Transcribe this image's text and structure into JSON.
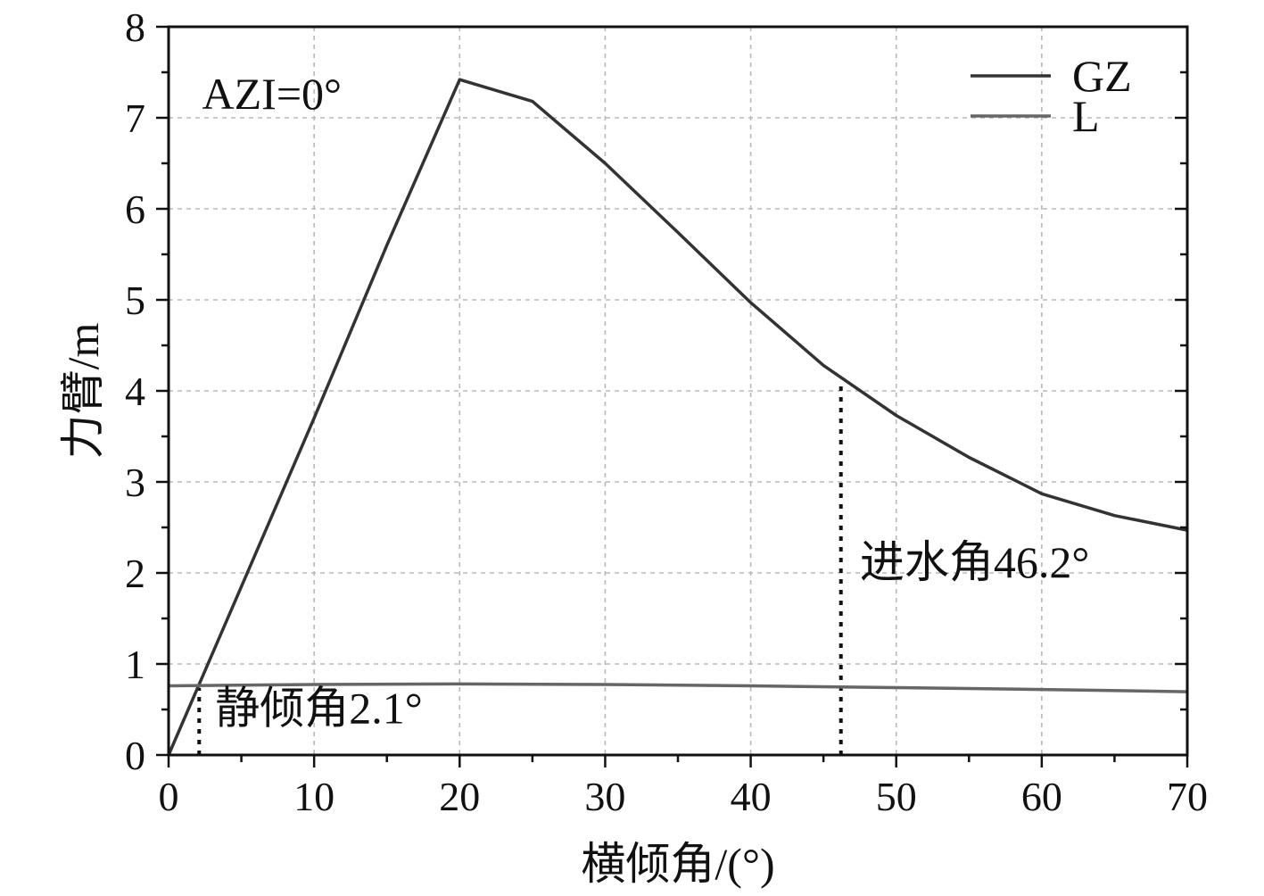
{
  "chart_data": {
    "type": "line",
    "title": "",
    "xlabel": "横倾角/(°)",
    "ylabel": "力臂/m",
    "xlim": [
      0,
      70
    ],
    "ylim": [
      0,
      8
    ],
    "xticks": [
      0,
      10,
      20,
      30,
      40,
      50,
      60,
      70
    ],
    "yticks": [
      0,
      1,
      2,
      3,
      4,
      5,
      6,
      7,
      8
    ],
    "grid": true,
    "legend_position": "top-right",
    "series": [
      {
        "name": "GZ",
        "color": "#333333",
        "x": [
          0,
          5,
          10,
          15,
          20,
          25,
          30,
          35,
          40,
          45,
          50,
          55,
          60,
          65,
          70
        ],
        "y": [
          0,
          1.85,
          3.7,
          5.6,
          7.42,
          7.18,
          6.5,
          5.74,
          4.97,
          4.28,
          3.73,
          3.27,
          2.87,
          2.63,
          2.47
        ]
      },
      {
        "name": "L",
        "color": "#666666",
        "x": [
          0,
          10,
          20,
          30,
          40,
          50,
          60,
          70
        ],
        "y": [
          0.76,
          0.775,
          0.78,
          0.775,
          0.76,
          0.74,
          0.72,
          0.695
        ]
      }
    ],
    "annotations": [
      {
        "text": "AZI=0°",
        "x": 2.3,
        "y": 7.1
      },
      {
        "text": "静倾角2.1°",
        "x": 3.2,
        "y": 0.35,
        "vline_x": 2.1
      },
      {
        "text": "进水角46.2°",
        "x": 47.5,
        "y": 1.95,
        "vline_x": 46.2
      }
    ]
  }
}
